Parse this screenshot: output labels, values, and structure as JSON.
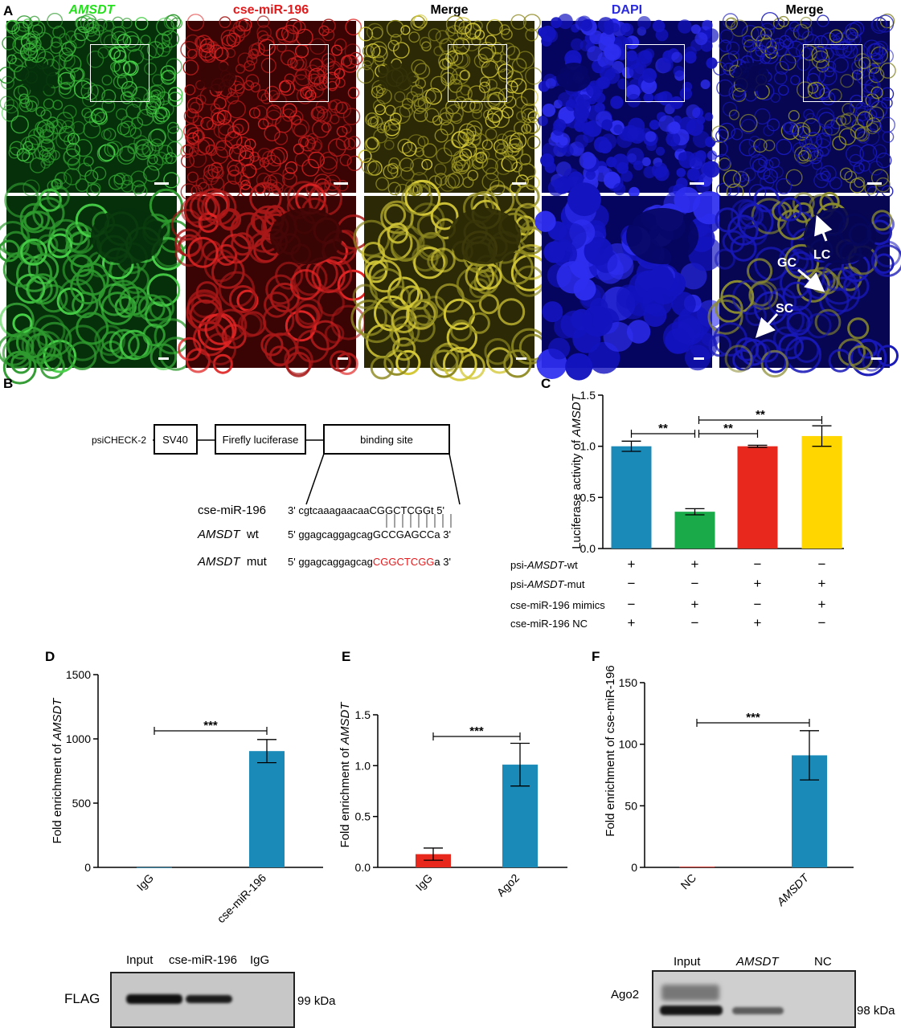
{
  "panel_labels": {
    "a": "A",
    "b": "B",
    "c": "C",
    "d": "D",
    "e": "E",
    "f": "F"
  },
  "fish": {
    "titles": [
      {
        "text": "AMSDT",
        "color": "#22e01a",
        "italic": true
      },
      {
        "text": "cse-miR-196",
        "color": "#e31a1c",
        "italic": false
      },
      {
        "text": "Merge",
        "color": "#000000",
        "italic": false
      },
      {
        "text": "DAPI",
        "color": "#2a2ae0",
        "italic": false
      },
      {
        "text": "Merge",
        "color": "#000000",
        "italic": false
      }
    ],
    "annotations": {
      "lc": "LC",
      "gc": "GC",
      "sc": "SC"
    }
  },
  "construct": {
    "vector": "psiCHECK-2",
    "sv40": "SV40",
    "firefly": "Firefly luciferase",
    "binding": "binding site",
    "rows": [
      {
        "name": "cse-miR-196",
        "tag": "",
        "five": "3'",
        "black": "cgtcaaagaacaaCGGCTCGGt",
        "red": "",
        "three": "5'"
      },
      {
        "name": "AMSDT",
        "tag": "wt",
        "five": "5'",
        "black": "ggagcaggagcagGCCGAGCCa",
        "red": "",
        "three": "3'"
      },
      {
        "name": "AMSDT",
        "tag": "mut",
        "five": "5'",
        "black": "ggagcaggagcag",
        "red": "CGGCTCGG",
        "three": "a 3'"
      }
    ]
  },
  "chart_data": [
    {
      "panel": "C",
      "type": "bar",
      "ylabel": "Luciferase activity of AMSDT",
      "ylim": [
        0,
        1.5
      ],
      "yticks": [
        "0.0",
        "0.5",
        "1.0",
        "1.5"
      ],
      "values": [
        1.0,
        0.36,
        1.0,
        1.1
      ],
      "errors": [
        0.05,
        0.03,
        0.01,
        0.1
      ],
      "colors": [
        "#1a8bb9",
        "#1aaa4a",
        "#e8281c",
        "#ffd600"
      ],
      "significance": [
        "**",
        "**",
        "**"
      ],
      "conditions": [
        {
          "label": "psi-AMSDT-wt",
          "signs": [
            "+",
            "+",
            "-",
            "-"
          ]
        },
        {
          "label": "psi-AMSDT-mut",
          "signs": [
            "-",
            "-",
            "+",
            "+"
          ]
        },
        {
          "label": "cse-miR-196 mimics",
          "signs": [
            "-",
            "+",
            "-",
            "+"
          ]
        },
        {
          "label": "cse-miR-196 NC",
          "signs": [
            "+",
            "-",
            "+",
            "-"
          ]
        }
      ]
    },
    {
      "panel": "D",
      "type": "bar",
      "ylabel": "Fold enrichment of AMSDT",
      "ylim": [
        0,
        1500
      ],
      "yticks": [
        "0",
        "500",
        "1000",
        "1500"
      ],
      "categories": [
        "IgG",
        "cse-miR-196"
      ],
      "values": [
        1,
        905
      ],
      "errors": [
        0,
        90
      ],
      "colors": [
        "#1a8bb9",
        "#1a8bb9"
      ],
      "significance": "***"
    },
    {
      "panel": "E",
      "type": "bar",
      "ylabel": "Fold enrichment of AMSDT",
      "ylim": [
        0,
        1.5
      ],
      "yticks": [
        "0.0",
        "0.5",
        "1.0",
        "1.5"
      ],
      "categories": [
        "IgG",
        "Ago2"
      ],
      "values": [
        0.13,
        1.01
      ],
      "errors": [
        0.06,
        0.21
      ],
      "colors": [
        "#e8281c",
        "#1a8bb9"
      ],
      "significance": "***"
    },
    {
      "panel": "F",
      "type": "bar",
      "ylabel": "Fold enrichment of cse-miR-196",
      "ylim": [
        0,
        150
      ],
      "yticks": [
        "0",
        "50",
        "100",
        "150"
      ],
      "categories": [
        "NC",
        "AMSDT"
      ],
      "values": [
        0.5,
        91
      ],
      "errors": [
        0,
        20
      ],
      "colors": [
        "#e8281c",
        "#1a8bb9"
      ],
      "significance": "***"
    }
  ],
  "blot_d": {
    "lanes": [
      "Input",
      "cse-miR-196",
      "IgG"
    ],
    "protein": "FLAG",
    "size": "99 kDa"
  },
  "blot_f": {
    "lanes": [
      "Input",
      "AMSDT",
      "NC"
    ],
    "protein": "Ago2",
    "size": "98 kDa"
  }
}
